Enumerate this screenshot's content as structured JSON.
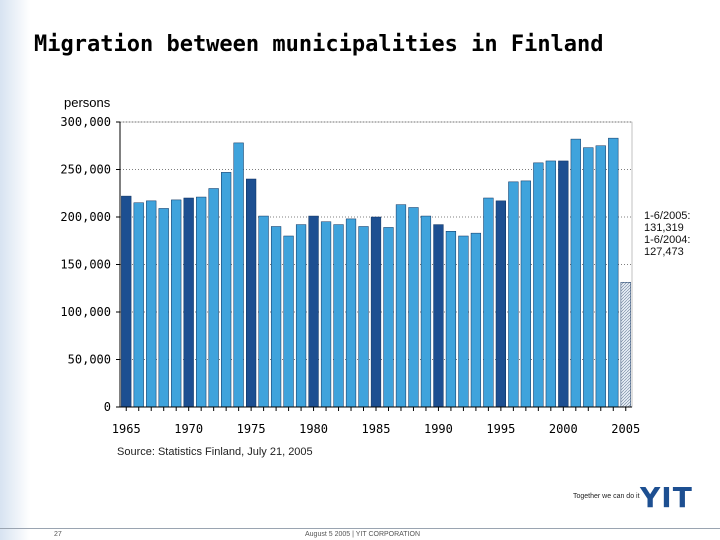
{
  "slide": {
    "title": "Migration between municipalities in Finland",
    "source": "Source: Statistics Finland,  July  21, 2005",
    "note_lines": [
      "1-6/2005:",
      "131,319",
      "1-6/2004:",
      "127,473"
    ],
    "tagline": "Together we can do it",
    "logo": "YIT",
    "page_number": "27",
    "footer": "August 5 2005   |   YIT CORPORATION"
  },
  "colors": {
    "bar_blue": "#3fa3dc",
    "bar_dark": "#1d4f91",
    "partial_fill": "#e6edf5"
  },
  "chart_data": {
    "type": "bar",
    "title": "",
    "xlabel": "",
    "ylabel": "persons",
    "ylim": [
      0,
      300000
    ],
    "yticks": [
      0,
      50000,
      100000,
      150000,
      200000,
      250000,
      300000
    ],
    "ytick_labels": [
      "0",
      "50,000",
      "100,000",
      "150,000",
      "200,000",
      "250,000",
      "300,000"
    ],
    "xtick_labels": [
      "1965",
      "1970",
      "1975",
      "1980",
      "1985",
      "1990",
      "1995",
      "2000",
      "2005"
    ],
    "grid": "horizontal dotted",
    "categories": [
      "1965",
      "1966",
      "1967",
      "1968",
      "1969",
      "1970",
      "1971",
      "1972",
      "1973",
      "1974",
      "1975",
      "1976",
      "1977",
      "1978",
      "1979",
      "1980",
      "1981",
      "1982",
      "1983",
      "1984",
      "1985",
      "1986",
      "1987",
      "1988",
      "1989",
      "1990",
      "1991",
      "1992",
      "1993",
      "1994",
      "1995",
      "1996",
      "1997",
      "1998",
      "1999",
      "2000",
      "2001",
      "2002",
      "2003",
      "2004",
      "2005"
    ],
    "values": [
      222000,
      215000,
      217000,
      209000,
      218000,
      220000,
      221000,
      230000,
      247000,
      278000,
      240000,
      201000,
      190000,
      180000,
      192000,
      201000,
      195000,
      192000,
      198000,
      190000,
      200000,
      189000,
      213000,
      210000,
      201000,
      192000,
      185000,
      180000,
      183000,
      220000,
      217000,
      237000,
      238000,
      257000,
      259000,
      259000,
      282000,
      273000,
      275000,
      283000,
      131319
    ],
    "highlight_years": [
      "1965",
      "1970",
      "1975",
      "1980",
      "1985",
      "1990",
      "1995",
      "2000",
      "2005"
    ],
    "partial_year": "2005"
  }
}
